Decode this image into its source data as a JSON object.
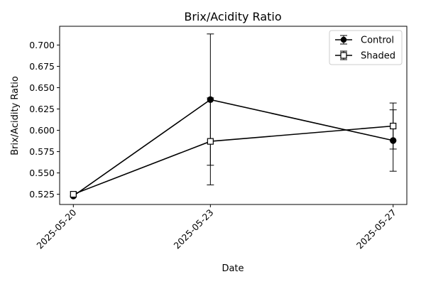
{
  "chart_data": {
    "type": "line",
    "title": "Brix/Acidity Ratio",
    "xlabel": "Date",
    "ylabel": "Brix/Acidity Ratio",
    "categories": [
      "2025-05-20",
      "2025-05-23",
      "2025-05-27"
    ],
    "x_days": [
      0,
      3,
      7
    ],
    "ylim": [
      0.513,
      0.722
    ],
    "yticks": [
      0.525,
      0.55,
      0.575,
      0.6,
      0.625,
      0.65,
      0.675,
      0.7
    ],
    "ytick_labels": [
      "0.525",
      "0.550",
      "0.575",
      "0.600",
      "0.625",
      "0.650",
      "0.675",
      "0.700"
    ],
    "grid": false,
    "legend_position": "top-right",
    "series": [
      {
        "name": "Control",
        "marker": "filled-circle",
        "color": "#000000",
        "values": [
          0.523,
          0.636,
          0.588
        ],
        "errors": [
          0.0,
          0.077,
          0.036
        ]
      },
      {
        "name": "Shaded",
        "marker": "open-square",
        "color": "#000000",
        "values": [
          0.525,
          0.587,
          0.605
        ],
        "errors": [
          0.0,
          0.051,
          0.027
        ]
      }
    ]
  }
}
